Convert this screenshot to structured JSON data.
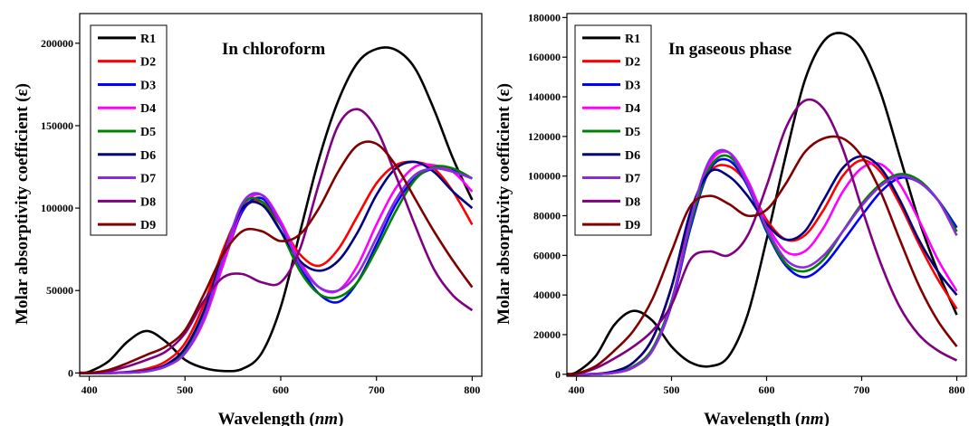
{
  "chart_data": [
    {
      "type": "line",
      "annotation": "In chloroform",
      "xlabel_main": "Wavelength (",
      "xlabel_unit": "nm",
      "xlabel_end": ")",
      "ylabel": "Molar absorptivity coefficient (ε)",
      "xlim": [
        390,
        810
      ],
      "ylim": [
        -2000,
        218000
      ],
      "xticks": [
        400,
        500,
        600,
        700,
        800
      ],
      "yticks": [
        0,
        50000,
        100000,
        150000,
        200000
      ],
      "legend_position": "top-left",
      "series": [
        {
          "name": "R1",
          "color": "#000000",
          "x": [
            390,
            400,
            420,
            440,
            460,
            480,
            500,
            520,
            540,
            560,
            580,
            600,
            620,
            640,
            660,
            680,
            700,
            720,
            740,
            760,
            780,
            800
          ],
          "y": [
            200,
            800,
            7000,
            19000,
            25500,
            19000,
            8000,
            3000,
            1200,
            2500,
            12000,
            40000,
            85000,
            130000,
            165000,
            188000,
            196500,
            196000,
            185000,
            160000,
            130000,
            105000
          ]
        },
        {
          "name": "D2",
          "color": "#ff0000",
          "x": [
            390,
            400,
            420,
            440,
            460,
            480,
            500,
            520,
            540,
            560,
            580,
            600,
            620,
            640,
            660,
            680,
            700,
            720,
            740,
            760,
            780,
            800
          ],
          "y": [
            0,
            0,
            100,
            600,
            2500,
            7000,
            18000,
            42000,
            75000,
            99000,
            104000,
            90000,
            72000,
            65000,
            75000,
            95000,
            115000,
            126000,
            128000,
            124000,
            110000,
            90000
          ]
        },
        {
          "name": "D3",
          "color": "#0000ff",
          "x": [
            390,
            400,
            420,
            440,
            460,
            480,
            500,
            520,
            540,
            560,
            580,
            600,
            620,
            640,
            660,
            680,
            700,
            720,
            740,
            760,
            780,
            800
          ],
          "y": [
            0,
            0,
            0,
            200,
            1000,
            4000,
            12000,
            32000,
            66000,
            98000,
            106000,
            90000,
            65000,
            48000,
            43000,
            55000,
            78000,
            102000,
            118000,
            124000,
            123000,
            118000
          ]
        },
        {
          "name": "D4",
          "color": "#ff00ff",
          "x": [
            390,
            400,
            420,
            440,
            460,
            480,
            500,
            520,
            540,
            560,
            580,
            600,
            620,
            640,
            660,
            680,
            700,
            720,
            740,
            760,
            780,
            800
          ],
          "y": [
            0,
            0,
            0,
            200,
            1000,
            4000,
            12000,
            32000,
            66000,
            100000,
            108000,
            92000,
            68000,
            52000,
            50000,
            65000,
            90000,
            112000,
            125000,
            126000,
            122000,
            110000
          ]
        },
        {
          "name": "D5",
          "color": "#008000",
          "x": [
            390,
            400,
            420,
            440,
            460,
            480,
            500,
            520,
            540,
            560,
            580,
            600,
            620,
            640,
            660,
            680,
            700,
            720,
            740,
            760,
            780,
            800
          ],
          "y": [
            0,
            0,
            0,
            300,
            1200,
            4500,
            13000,
            35000,
            70000,
            102000,
            104000,
            86000,
            62000,
            48000,
            46000,
            55000,
            75000,
            98000,
            117000,
            125000,
            124000,
            118000
          ]
        },
        {
          "name": "D6",
          "color": "#000080",
          "x": [
            390,
            400,
            420,
            440,
            460,
            480,
            500,
            520,
            540,
            560,
            580,
            600,
            620,
            640,
            660,
            680,
            700,
            720,
            740,
            760,
            780,
            800
          ],
          "y": [
            0,
            0,
            0,
            400,
            1500,
            5000,
            15000,
            38000,
            72000,
            100000,
            102000,
            86000,
            68000,
            62000,
            68000,
            85000,
            108000,
            124000,
            128000,
            122000,
            110000,
            100000
          ]
        },
        {
          "name": "D7",
          "color": "#8a2be2",
          "x": [
            390,
            400,
            420,
            440,
            460,
            480,
            500,
            520,
            540,
            560,
            580,
            600,
            620,
            640,
            660,
            680,
            700,
            720,
            740,
            760,
            780,
            800
          ],
          "y": [
            0,
            0,
            0,
            200,
            1000,
            4000,
            12000,
            34000,
            70000,
            103000,
            108000,
            90000,
            66000,
            52000,
            50000,
            60000,
            82000,
            105000,
            120000,
            124000,
            122000,
            118000
          ]
        },
        {
          "name": "D8",
          "color": "#800080",
          "x": [
            390,
            400,
            420,
            440,
            460,
            480,
            500,
            520,
            540,
            560,
            580,
            600,
            620,
            640,
            660,
            680,
            700,
            720,
            740,
            760,
            780,
            800
          ],
          "y": [
            0,
            0,
            1000,
            4000,
            8000,
            13000,
            24000,
            44000,
            58000,
            60000,
            55000,
            55000,
            75000,
            115000,
            150000,
            160000,
            148000,
            120000,
            90000,
            63000,
            47000,
            38000
          ]
        },
        {
          "name": "D9",
          "color": "#800000",
          "x": [
            390,
            400,
            420,
            440,
            460,
            480,
            500,
            520,
            540,
            560,
            580,
            600,
            620,
            640,
            660,
            680,
            700,
            720,
            740,
            760,
            780,
            800
          ],
          "y": [
            0,
            0,
            1800,
            6000,
            11000,
            16000,
            26000,
            48000,
            72000,
            86000,
            86000,
            80000,
            84000,
            100000,
            122000,
            138000,
            139000,
            126000,
            106000,
            86000,
            68000,
            52000
          ]
        }
      ]
    },
    {
      "type": "line",
      "annotation": "In gaseous phase",
      "xlabel_main": "Wavelength (",
      "xlabel_unit": "nm",
      "xlabel_end": ")",
      "ylabel": "Molar absorptivity coefficient (ε)",
      "xlim": [
        390,
        810
      ],
      "ylim": [
        -1000,
        182000
      ],
      "xticks": [
        400,
        500,
        600,
        700,
        800
      ],
      "yticks": [
        0,
        20000,
        40000,
        60000,
        80000,
        100000,
        120000,
        140000,
        160000,
        180000
      ],
      "legend_position": "top-left",
      "series": [
        {
          "name": "R1",
          "color": "#000000",
          "x": [
            390,
            400,
            420,
            440,
            460,
            480,
            500,
            520,
            540,
            560,
            580,
            600,
            620,
            640,
            660,
            680,
            700,
            720,
            740,
            760,
            780,
            800
          ],
          "y": [
            200,
            1000,
            9000,
            25000,
            32000,
            27000,
            14000,
            6000,
            4000,
            9000,
            30000,
            68000,
            110000,
            148000,
            168000,
            172000,
            164000,
            142000,
            110000,
            78000,
            52000,
            30000
          ]
        },
        {
          "name": "D2",
          "color": "#ff0000",
          "x": [
            390,
            400,
            420,
            440,
            460,
            480,
            500,
            520,
            540,
            560,
            580,
            600,
            620,
            640,
            660,
            680,
            700,
            720,
            740,
            760,
            780,
            800
          ],
          "y": [
            0,
            0,
            200,
            1500,
            6000,
            18000,
            44000,
            80000,
            102000,
            105000,
            96000,
            78000,
            68000,
            70000,
            83000,
            100000,
            108000,
            102000,
            86000,
            66000,
            48000,
            33000
          ]
        },
        {
          "name": "D3",
          "color": "#0000ff",
          "x": [
            390,
            400,
            420,
            440,
            460,
            480,
            500,
            520,
            540,
            560,
            580,
            600,
            620,
            640,
            660,
            680,
            700,
            720,
            740,
            760,
            780,
            800
          ],
          "y": [
            0,
            0,
            100,
            800,
            3500,
            12000,
            35000,
            74000,
            103000,
            108000,
            95000,
            72000,
            55000,
            49000,
            55000,
            67000,
            80000,
            92000,
            99000,
            97000,
            88000,
            74000
          ]
        },
        {
          "name": "D4",
          "color": "#ff00ff",
          "x": [
            390,
            400,
            420,
            440,
            460,
            480,
            500,
            520,
            540,
            560,
            580,
            600,
            620,
            640,
            660,
            680,
            700,
            720,
            740,
            760,
            780,
            800
          ],
          "y": [
            0,
            0,
            100,
            800,
            3500,
            12000,
            36000,
            76000,
            106000,
            112000,
            98000,
            76000,
            62000,
            62000,
            74000,
            92000,
            104000,
            106000,
            96000,
            78000,
            58000,
            42000
          ]
        },
        {
          "name": "D5",
          "color": "#008000",
          "x": [
            390,
            400,
            420,
            440,
            460,
            480,
            500,
            520,
            540,
            560,
            580,
            600,
            620,
            640,
            660,
            680,
            700,
            720,
            740,
            760,
            780,
            800
          ],
          "y": [
            0,
            0,
            100,
            900,
            4000,
            13000,
            37000,
            76000,
            104000,
            110000,
            96000,
            73000,
            56000,
            52000,
            58000,
            72000,
            86000,
            96000,
            101000,
            98000,
            88000,
            72000
          ]
        },
        {
          "name": "D6",
          "color": "#000080",
          "x": [
            390,
            400,
            420,
            440,
            460,
            480,
            500,
            520,
            540,
            560,
            580,
            600,
            620,
            640,
            660,
            680,
            700,
            720,
            740,
            760,
            780,
            800
          ],
          "y": [
            0,
            0,
            200,
            1500,
            6000,
            18000,
            44000,
            82000,
            102000,
            100000,
            90000,
            76000,
            68000,
            72000,
            88000,
            104000,
            110000,
            104000,
            88000,
            68000,
            52000,
            40000
          ]
        },
        {
          "name": "D7",
          "color": "#8a2be2",
          "x": [
            390,
            400,
            420,
            440,
            460,
            480,
            500,
            520,
            540,
            560,
            580,
            600,
            620,
            640,
            660,
            680,
            700,
            720,
            740,
            760,
            780,
            800
          ],
          "y": [
            0,
            0,
            100,
            800,
            3500,
            12000,
            36000,
            78000,
            108000,
            112000,
            96000,
            74000,
            58000,
            54000,
            60000,
            72000,
            85000,
            95000,
            100000,
            97000,
            88000,
            70000
          ]
        },
        {
          "name": "D8",
          "color": "#800080",
          "x": [
            390,
            400,
            420,
            440,
            460,
            480,
            500,
            520,
            540,
            560,
            580,
            600,
            620,
            640,
            660,
            680,
            700,
            720,
            740,
            760,
            780,
            800
          ],
          "y": [
            0,
            200,
            3000,
            8000,
            14000,
            22000,
            35000,
            58000,
            62000,
            60000,
            70000,
            95000,
            124000,
            138000,
            134000,
            114000,
            84000,
            56000,
            34000,
            20000,
            12000,
            7000
          ]
        },
        {
          "name": "D9",
          "color": "#800000",
          "x": [
            390,
            400,
            420,
            440,
            460,
            480,
            500,
            520,
            540,
            560,
            580,
            600,
            620,
            640,
            660,
            680,
            700,
            720,
            740,
            760,
            780,
            800
          ],
          "y": [
            0,
            300,
            4000,
            12000,
            22000,
            38000,
            62000,
            85000,
            90000,
            86000,
            80000,
            83000,
            96000,
            112000,
            119000,
            119000,
            110000,
            92000,
            68000,
            45000,
            27000,
            14000
          ]
        }
      ]
    }
  ]
}
